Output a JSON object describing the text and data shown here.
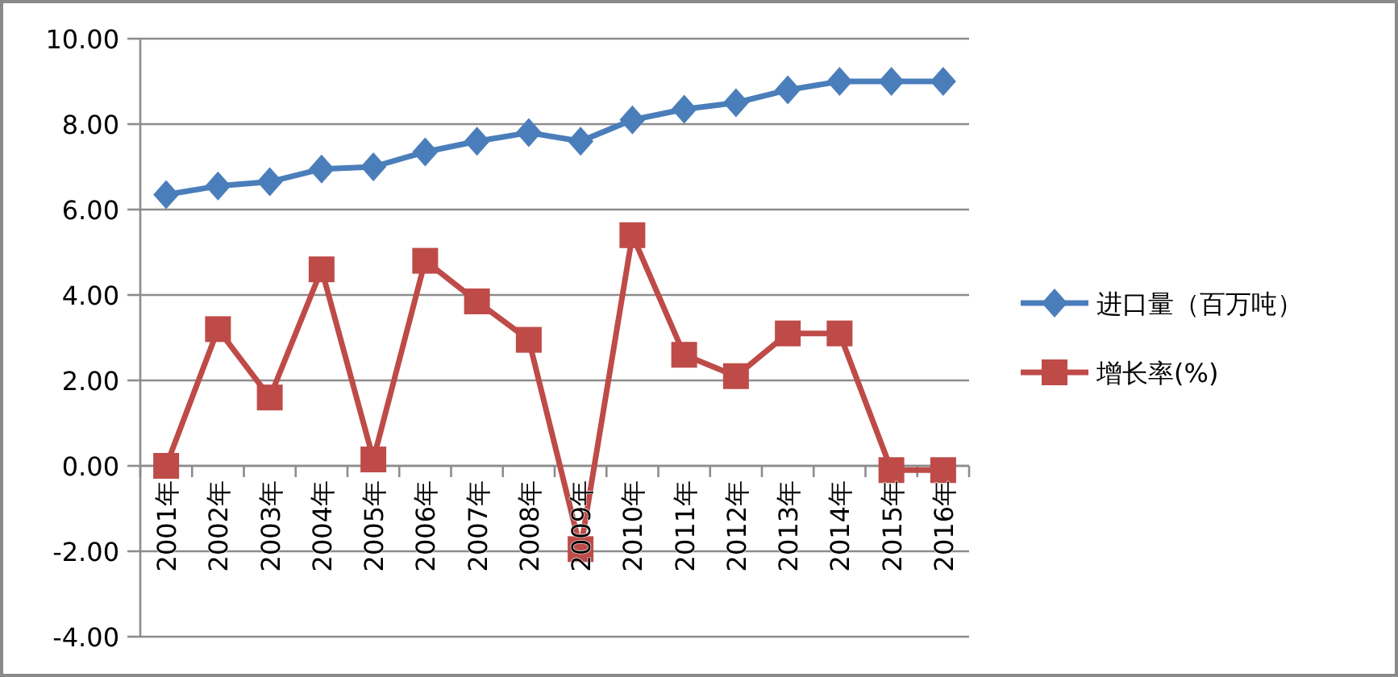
{
  "chart_data": {
    "type": "line",
    "categories": [
      "2001年",
      "2002年",
      "2003年",
      "2004年",
      "2005年",
      "2006年",
      "2007年",
      "2008年",
      "2009年",
      "2010年",
      "2011年",
      "2012年",
      "2013年",
      "2014年",
      "2015年",
      "2016年"
    ],
    "series": [
      {
        "name": "进口量（百万吨）",
        "color": "#4a7ebb",
        "marker": "diamond",
        "values": [
          6.35,
          6.55,
          6.65,
          6.95,
          7.0,
          7.35,
          7.6,
          7.8,
          7.6,
          8.1,
          8.35,
          8.5,
          8.8,
          9.0,
          9.0,
          9.0
        ]
      },
      {
        "name": "增长率(%)",
        "color": "#be4b48",
        "marker": "square",
        "values": [
          0.0,
          3.2,
          1.6,
          4.6,
          0.15,
          4.8,
          3.85,
          2.95,
          -1.95,
          5.4,
          2.6,
          2.1,
          3.1,
          3.1,
          -0.1,
          -0.1
        ]
      }
    ],
    "ylim": [
      -4,
      10
    ],
    "yticks": [
      {
        "value": -4,
        "label": "-4.00"
      },
      {
        "value": -2,
        "label": "-2.00"
      },
      {
        "value": 0,
        "label": "0.00"
      },
      {
        "value": 2,
        "label": "2.00"
      },
      {
        "value": 4,
        "label": "4.00"
      },
      {
        "value": 6,
        "label": "6.00"
      },
      {
        "value": 8,
        "label": "8.00"
      },
      {
        "value": 10,
        "label": "10.00"
      }
    ],
    "grid": "y",
    "legend": "right"
  }
}
